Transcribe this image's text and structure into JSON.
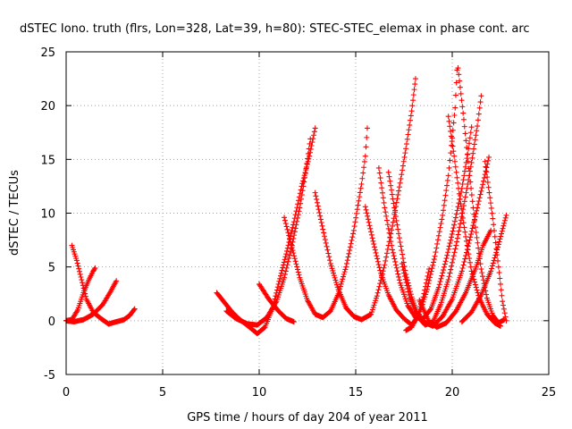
{
  "chart_data": {
    "type": "scatter",
    "title": "dSTEC Iono. truth (flrs, Lon=328, Lat=39, h=80): STEC-STEC_elemax in phase cont. arc",
    "xlabel": "GPS time / hours of day 204 of year 2011",
    "ylabel": "dSTEC  / TECUs",
    "xlim": [
      0,
      25
    ],
    "ylim": [
      -5,
      25
    ],
    "xticks": [
      0,
      5,
      10,
      15,
      20,
      25
    ],
    "yticks": [
      -5,
      0,
      5,
      10,
      15,
      20,
      25
    ],
    "grid": true,
    "legend": "none",
    "marker": "plus",
    "color": "#ff0000",
    "series": [
      {
        "arc": [
          [
            0.0,
            0.0
          ],
          [
            0.3,
            0.1
          ],
          [
            0.6,
            1.0
          ],
          [
            0.9,
            2.6
          ],
          [
            1.2,
            3.9
          ],
          [
            1.4,
            4.6
          ],
          [
            1.5,
            4.9
          ]
        ]
      },
      {
        "arc": [
          [
            0.0,
            0.0
          ],
          [
            0.4,
            -0.1
          ],
          [
            0.9,
            0.1
          ],
          [
            1.4,
            0.6
          ],
          [
            1.9,
            1.5
          ],
          [
            2.3,
            2.7
          ],
          [
            2.6,
            3.7
          ]
        ]
      },
      {
        "arc": [
          [
            0.3,
            7.0
          ],
          [
            0.55,
            5.6
          ],
          [
            0.8,
            3.8
          ],
          [
            1.05,
            2.0
          ],
          [
            1.4,
            0.8
          ],
          [
            1.8,
            0.2
          ],
          [
            2.2,
            -0.3
          ],
          [
            2.6,
            -0.1
          ],
          [
            3.0,
            0.1
          ],
          [
            3.3,
            0.5
          ],
          [
            3.55,
            1.1
          ]
        ]
      },
      {
        "arc": [
          [
            7.8,
            2.6
          ],
          [
            8.2,
            1.7
          ],
          [
            8.6,
            0.8
          ],
          [
            9.0,
            0.1
          ],
          [
            9.5,
            -0.6
          ],
          [
            9.9,
            -1.2
          ],
          [
            10.3,
            -0.6
          ],
          [
            10.7,
            1.2
          ],
          [
            11.0,
            3.4
          ],
          [
            11.4,
            6.2
          ],
          [
            11.8,
            9.2
          ],
          [
            12.2,
            12.5
          ],
          [
            12.6,
            15.3
          ],
          [
            12.9,
            17.9
          ]
        ]
      },
      {
        "arc": [
          [
            8.3,
            0.9
          ],
          [
            8.8,
            0.2
          ],
          [
            9.4,
            -0.3
          ],
          [
            9.9,
            -0.4
          ],
          [
            10.4,
            0.3
          ],
          [
            10.9,
            1.8
          ],
          [
            11.3,
            4.0
          ],
          [
            11.7,
            7.0
          ],
          [
            12.1,
            10.5
          ],
          [
            12.4,
            13.7
          ],
          [
            12.65,
            16.9
          ]
        ]
      },
      {
        "arc": [
          [
            10.0,
            3.4
          ],
          [
            10.5,
            2.0
          ],
          [
            11.0,
            0.9
          ],
          [
            11.4,
            0.2
          ],
          [
            11.8,
            -0.1
          ]
        ]
      },
      {
        "arc": [
          [
            11.3,
            9.6
          ],
          [
            11.7,
            6.8
          ],
          [
            12.1,
            4.0
          ],
          [
            12.5,
            1.9
          ],
          [
            12.9,
            0.6
          ],
          [
            13.3,
            0.3
          ],
          [
            13.7,
            0.9
          ],
          [
            14.1,
            2.5
          ],
          [
            14.5,
            5.0
          ],
          [
            14.9,
            8.4
          ],
          [
            15.3,
            12.7
          ],
          [
            15.5,
            15.3
          ],
          [
            15.6,
            17.9
          ]
        ]
      },
      {
        "arc": [
          [
            12.9,
            11.9
          ],
          [
            13.3,
            8.5
          ],
          [
            13.7,
            5.3
          ],
          [
            14.1,
            2.9
          ],
          [
            14.5,
            1.2
          ],
          [
            14.9,
            0.4
          ],
          [
            15.3,
            0.1
          ],
          [
            15.8,
            0.6
          ],
          [
            16.1,
            2.3
          ],
          [
            16.5,
            5.2
          ],
          [
            16.9,
            8.8
          ],
          [
            17.3,
            12.8
          ],
          [
            17.6,
            16.0
          ],
          [
            17.9,
            19.5
          ],
          [
            18.1,
            22.5
          ]
        ]
      },
      {
        "arc": [
          [
            15.5,
            10.6
          ],
          [
            15.9,
            7.4
          ],
          [
            16.3,
            4.4
          ],
          [
            16.7,
            2.4
          ],
          [
            17.1,
            1.0
          ],
          [
            17.5,
            0.2
          ],
          [
            17.9,
            -0.4
          ],
          [
            18.3,
            0.6
          ],
          [
            18.7,
            2.9
          ],
          [
            19.1,
            6.0
          ],
          [
            19.5,
            9.8
          ],
          [
            19.8,
            13.5
          ],
          [
            20.0,
            17.0
          ],
          [
            20.15,
            19.8
          ],
          [
            20.25,
            23.3
          ]
        ]
      },
      {
        "arc": [
          [
            16.2,
            14.2
          ],
          [
            16.5,
            10.5
          ],
          [
            16.9,
            6.6
          ],
          [
            17.3,
            3.5
          ],
          [
            17.7,
            1.4
          ],
          [
            18.1,
            0.3
          ],
          [
            18.5,
            0.2
          ],
          [
            18.9,
            1.1
          ],
          [
            19.3,
            3.1
          ],
          [
            19.7,
            5.8
          ],
          [
            20.1,
            8.9
          ],
          [
            20.5,
            12.3
          ],
          [
            20.8,
            15.5
          ],
          [
            21.0,
            18.0
          ]
        ]
      },
      {
        "arc": [
          [
            16.7,
            13.8
          ],
          [
            17.0,
            10.5
          ],
          [
            17.3,
            7.3
          ],
          [
            17.6,
            4.3
          ],
          [
            17.9,
            2.2
          ],
          [
            18.2,
            0.7
          ],
          [
            18.6,
            -0.2
          ],
          [
            19.0,
            -0.5
          ],
          [
            19.5,
            0.4
          ],
          [
            20.0,
            2.0
          ],
          [
            20.5,
            4.6
          ],
          [
            20.9,
            7.5
          ],
          [
            21.3,
            10.5
          ],
          [
            21.7,
            13.6
          ],
          [
            21.9,
            15.2
          ]
        ]
      },
      {
        "arc": [
          [
            17.4,
            5.3
          ],
          [
            17.8,
            2.1
          ],
          [
            18.2,
            0.4
          ],
          [
            18.6,
            -0.4
          ],
          [
            19.0,
            -0.1
          ],
          [
            19.4,
            1.5
          ],
          [
            19.8,
            3.8
          ],
          [
            20.2,
            7.0
          ],
          [
            20.6,
            10.7
          ],
          [
            21.0,
            14.7
          ],
          [
            21.3,
            18.1
          ],
          [
            21.5,
            20.9
          ]
        ]
      },
      {
        "arc": [
          [
            18.8,
            4.8
          ],
          [
            18.5,
            2.2
          ],
          [
            18.2,
            0.4
          ],
          [
            17.9,
            -0.6
          ],
          [
            17.6,
            -0.9
          ]
        ]
      },
      {
        "arc": [
          [
            19.8,
            19.0
          ],
          [
            20.1,
            15.3
          ],
          [
            20.4,
            11.3
          ],
          [
            20.7,
            7.8
          ],
          [
            21.0,
            4.6
          ],
          [
            21.4,
            2.1
          ],
          [
            21.8,
            0.6
          ],
          [
            22.2,
            -0.2
          ],
          [
            22.5,
            -0.5
          ]
        ]
      },
      {
        "arc": [
          [
            20.3,
            23.5
          ],
          [
            20.6,
            18.7
          ],
          [
            20.9,
            13.5
          ],
          [
            21.2,
            8.7
          ],
          [
            21.5,
            4.8
          ],
          [
            21.8,
            2.1
          ],
          [
            22.1,
            0.5
          ],
          [
            22.4,
            -0.2
          ],
          [
            22.7,
            0.1
          ]
        ]
      },
      {
        "arc": [
          [
            21.7,
            14.8
          ],
          [
            22.1,
            9.5
          ],
          [
            22.4,
            5.0
          ],
          [
            22.6,
            1.8
          ],
          [
            22.8,
            0.0
          ]
        ]
      },
      {
        "arc": [
          [
            20.5,
            -0.1
          ],
          [
            21.0,
            0.8
          ],
          [
            21.5,
            2.4
          ],
          [
            22.0,
            4.6
          ],
          [
            22.4,
            7.1
          ],
          [
            22.8,
            9.8
          ]
        ]
      },
      {
        "arc": [
          [
            18.3,
            1.9
          ],
          [
            18.8,
            -0.1
          ],
          [
            19.2,
            -0.6
          ],
          [
            19.7,
            -0.2
          ],
          [
            20.2,
            0.9
          ],
          [
            20.7,
            2.6
          ],
          [
            21.2,
            4.8
          ],
          [
            21.6,
            7.0
          ],
          [
            22.0,
            8.4
          ]
        ]
      }
    ]
  }
}
